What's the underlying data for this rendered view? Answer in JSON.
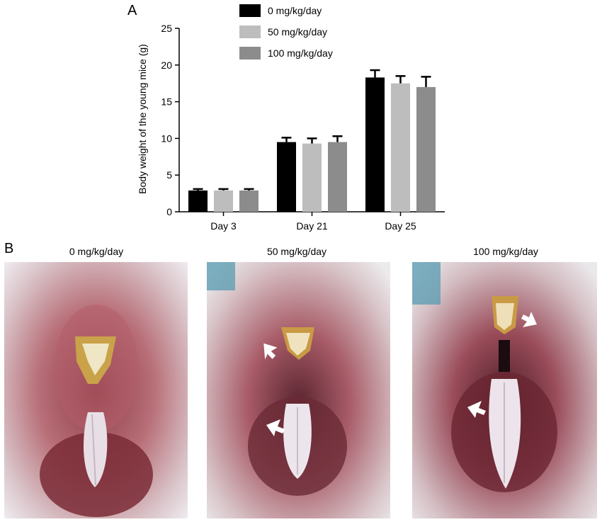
{
  "panels": {
    "a_label": "A",
    "b_label": "B"
  },
  "chart_data": {
    "type": "bar",
    "ylabel": "Body weight of the young mice (g)",
    "xlabel": "",
    "categories": [
      "Day 3",
      "Day 21",
      "Day 25"
    ],
    "ylim": [
      0,
      25
    ],
    "yticks": [
      0,
      5,
      10,
      15,
      20,
      25
    ],
    "legend_position": "top",
    "series": [
      {
        "name": "0 mg/kg/day",
        "color": "#000000",
        "values": [
          2.9,
          9.5,
          18.3
        ],
        "errors": [
          0.2,
          0.6,
          1.0
        ]
      },
      {
        "name": "50 mg/kg/day",
        "color": "#bdbdbd",
        "values": [
          2.9,
          9.3,
          17.5
        ],
        "errors": [
          0.2,
          0.7,
          1.0
        ]
      },
      {
        "name": "100 mg/kg/day",
        "color": "#8c8c8c",
        "values": [
          2.9,
          9.5,
          17.0
        ],
        "errors": [
          0.2,
          0.8,
          1.4
        ]
      }
    ]
  },
  "photos": [
    {
      "title": "0 mg/kg/day",
      "arrows": 0
    },
    {
      "title": "50 mg/kg/day",
      "arrows": 2
    },
    {
      "title": "100 mg/kg/day",
      "arrows": 2
    }
  ]
}
